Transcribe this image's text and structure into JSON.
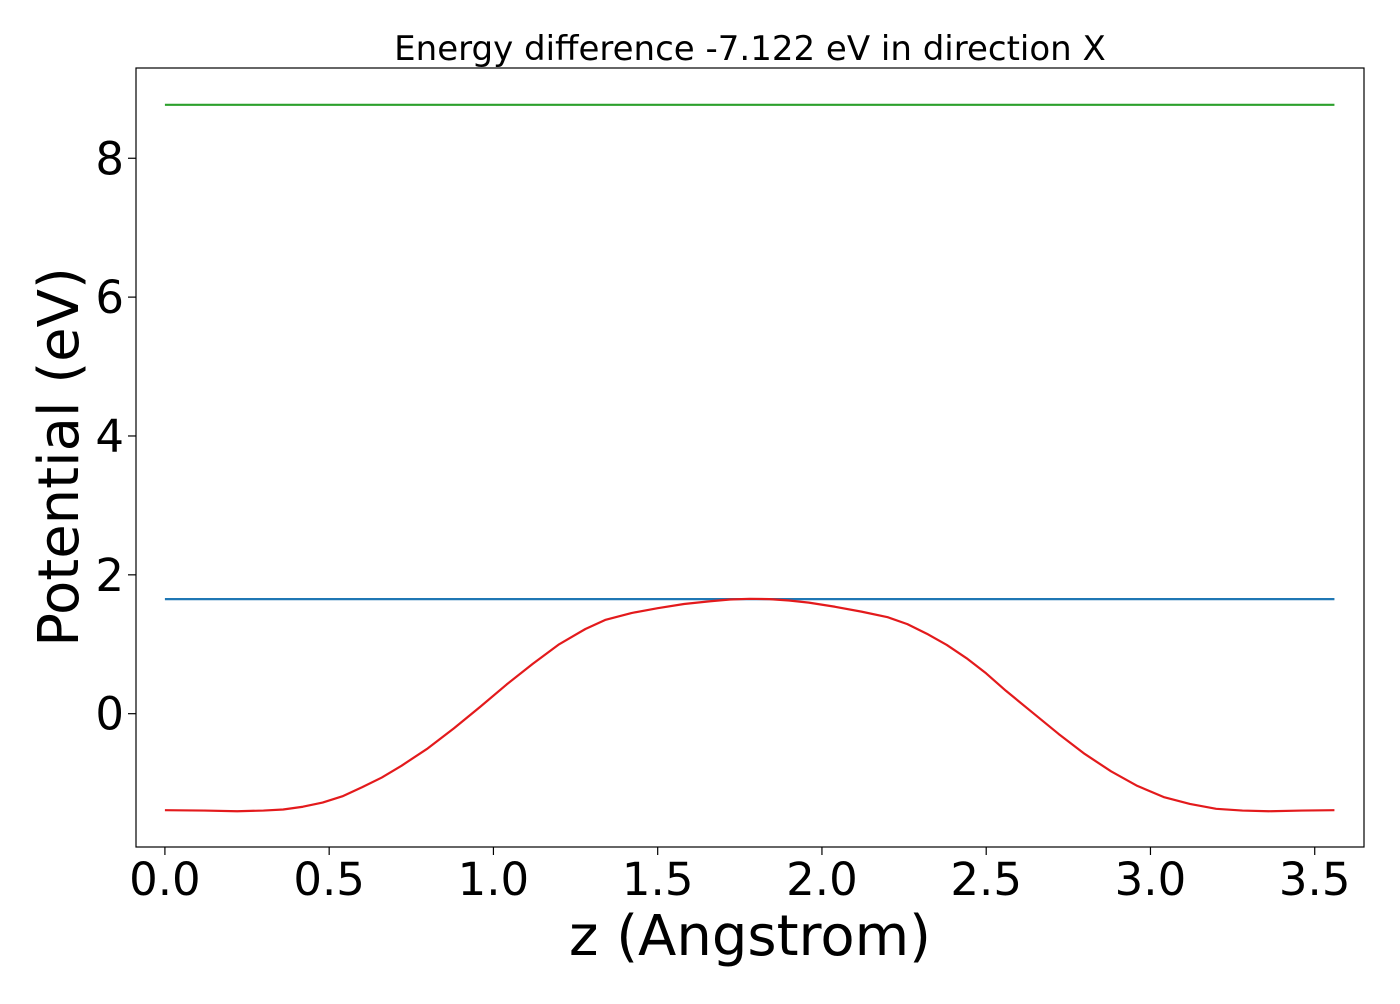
{
  "chart_data": {
    "type": "line",
    "title": "Energy difference -7.122 eV in direction X",
    "xlabel": "z (Angstrom)",
    "ylabel": "Potential (eV)",
    "xlim": [
      -0.088,
      3.65
    ],
    "ylim": [
      -1.92,
      9.3
    ],
    "xticks": [
      {
        "value": 0.0,
        "label": "0.0"
      },
      {
        "value": 0.5,
        "label": "0.5"
      },
      {
        "value": 1.0,
        "label": "1.0"
      },
      {
        "value": 1.5,
        "label": "1.5"
      },
      {
        "value": 2.0,
        "label": "2.0"
      },
      {
        "value": 2.5,
        "label": "2.5"
      },
      {
        "value": 3.0,
        "label": "3.0"
      },
      {
        "value": 3.5,
        "label": "3.5"
      }
    ],
    "yticks": [
      {
        "value": 0,
        "label": "0"
      },
      {
        "value": 2,
        "label": "2"
      },
      {
        "value": 4,
        "label": "4"
      },
      {
        "value": 6,
        "label": "6"
      },
      {
        "value": 8,
        "label": "8"
      }
    ],
    "grid": false,
    "series": [
      {
        "color": "#2ca02c",
        "x": [
          0.0,
          3.56
        ],
        "y": [
          8.77,
          8.77
        ]
      },
      {
        "color": "#1f77b4",
        "x": [
          0.0,
          3.56
        ],
        "y": [
          1.65,
          1.65
        ]
      },
      {
        "color": "#e31a1c",
        "x": [
          0.0,
          0.12,
          0.22,
          0.3,
          0.36,
          0.42,
          0.48,
          0.54,
          0.6,
          0.66,
          0.72,
          0.8,
          0.88,
          0.96,
          1.04,
          1.12,
          1.2,
          1.28,
          1.34,
          1.42,
          1.5,
          1.58,
          1.66,
          1.72,
          1.78,
          1.84,
          1.9,
          1.96,
          2.04,
          2.12,
          2.2,
          2.26,
          2.32,
          2.38,
          2.44,
          2.5,
          2.56,
          2.64,
          2.72,
          2.8,
          2.88,
          2.96,
          3.04,
          3.12,
          3.2,
          3.28,
          3.36,
          3.46,
          3.56
        ],
        "y": [
          -1.39,
          -1.395,
          -1.405,
          -1.395,
          -1.38,
          -1.34,
          -1.28,
          -1.19,
          -1.06,
          -0.92,
          -0.75,
          -0.5,
          -0.21,
          0.1,
          0.42,
          0.72,
          1.0,
          1.22,
          1.35,
          1.45,
          1.52,
          1.58,
          1.62,
          1.645,
          1.655,
          1.65,
          1.63,
          1.6,
          1.54,
          1.47,
          1.39,
          1.29,
          1.15,
          0.99,
          0.8,
          0.58,
          0.33,
          0.02,
          -0.29,
          -0.58,
          -0.83,
          -1.04,
          -1.2,
          -1.3,
          -1.37,
          -1.395,
          -1.405,
          -1.395,
          -1.39
        ]
      }
    ]
  }
}
